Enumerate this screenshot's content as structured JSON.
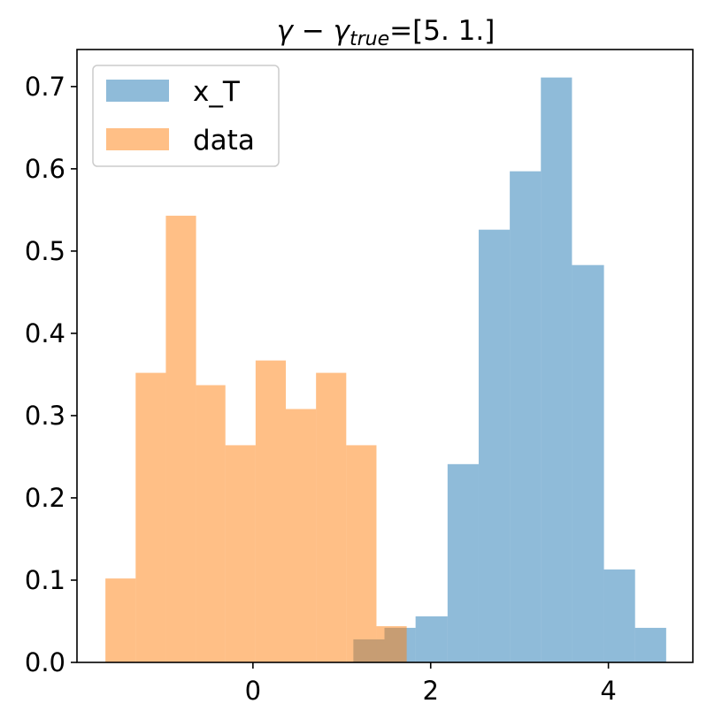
{
  "chart_data": {
    "type": "bar",
    "title": {
      "symbol": "γ − γ",
      "subscript": "true",
      "suffix": "=[5. 1.]"
    },
    "xlabel": "",
    "ylabel": "",
    "xlim": [
      -1.98,
      4.95
    ],
    "ylim": [
      0.0,
      0.745
    ],
    "xticks": [
      0,
      2,
      4
    ],
    "xtick_labels": [
      "0",
      "2",
      "4"
    ],
    "yticks": [
      0.0,
      0.1,
      0.2,
      0.3,
      0.4,
      0.5,
      0.6,
      0.7
    ],
    "ytick_labels": [
      "0.0",
      "0.1",
      "0.2",
      "0.3",
      "0.4",
      "0.5",
      "0.6",
      "0.7"
    ],
    "grid": false,
    "legend": {
      "placement": "top-left",
      "entries": [
        "x_T",
        "data"
      ]
    },
    "series": [
      {
        "name": "x_T",
        "color": "#1f77b4",
        "alpha": 0.5,
        "bin_edges": [
          1.13,
          1.48,
          1.83,
          2.19,
          2.54,
          2.89,
          3.24,
          3.59,
          3.95,
          4.3,
          4.65
        ],
        "values": [
          0.028,
          0.042,
          0.056,
          0.241,
          0.526,
          0.597,
          0.711,
          0.483,
          0.113,
          0.042
        ]
      },
      {
        "name": "data",
        "color": "#ff7f0e",
        "alpha": 0.5,
        "bin_edges": [
          -1.66,
          -1.32,
          -0.98,
          -0.64,
          -0.31,
          0.03,
          0.37,
          0.71,
          1.05,
          1.39,
          1.73
        ],
        "values": [
          0.102,
          0.352,
          0.543,
          0.337,
          0.264,
          0.367,
          0.308,
          0.352,
          0.264,
          0.044
        ]
      }
    ]
  }
}
